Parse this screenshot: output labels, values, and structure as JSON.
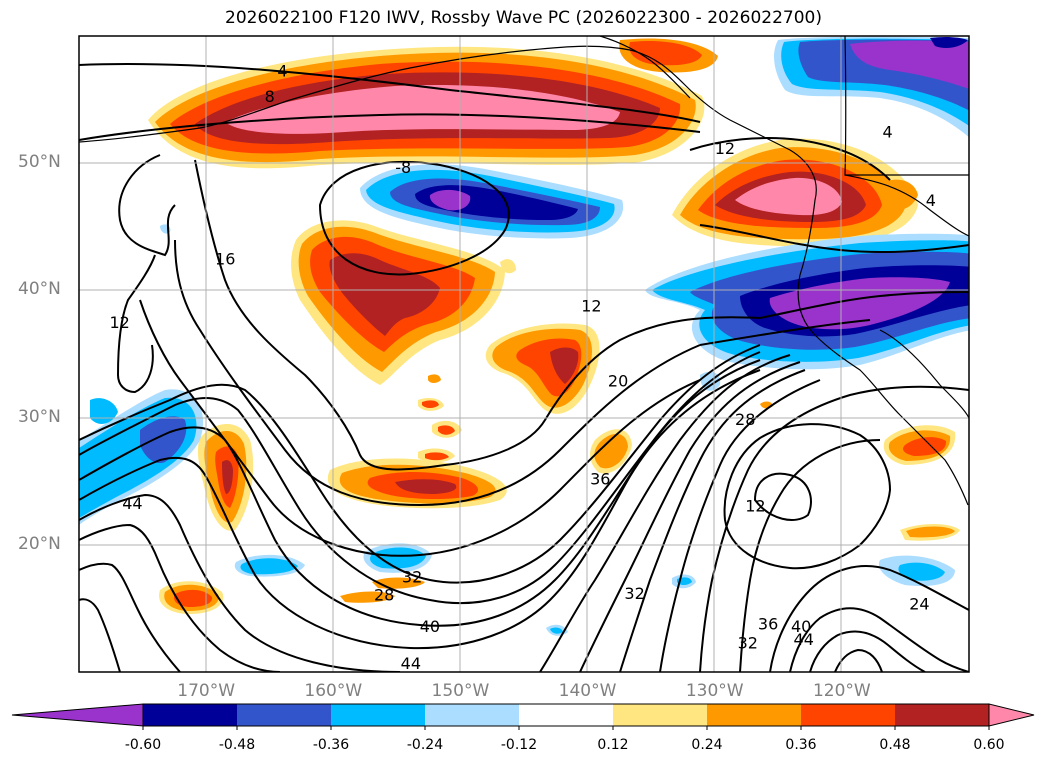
{
  "title": "2026022100 F120 IWV, Rossby Wave PC (2026022300 - 2026022700)",
  "lat_axis": {
    "labels": [
      {
        "text": "50°N",
        "value": 50
      },
      {
        "text": "40°N",
        "value": 40
      },
      {
        "text": "30°N",
        "value": 30
      },
      {
        "text": "20°N",
        "value": 20
      }
    ],
    "range": [
      10,
      60
    ]
  },
  "lon_axis": {
    "labels": [
      {
        "text": "170°W",
        "value": -170
      },
      {
        "text": "160°W",
        "value": -160
      },
      {
        "text": "150°W",
        "value": -150
      },
      {
        "text": "140°W",
        "value": -140
      },
      {
        "text": "130°W",
        "value": -130
      },
      {
        "text": "120°W",
        "value": -120
      }
    ],
    "range": [
      -180,
      -110
    ]
  },
  "colorbar": {
    "levels": [
      "-0.60",
      "-0.48",
      "-0.36",
      "-0.24",
      "-0.12",
      "0.12",
      "0.24",
      "0.36",
      "0.48",
      "0.60"
    ],
    "colors": [
      "#9933cc",
      "#000099",
      "#3355cc",
      "#00bbff",
      "#aaddff",
      "#ffffff",
      "#ffe680",
      "#ff9900",
      "#ff4400",
      "#b22222",
      "#ff88aa"
    ]
  },
  "fill_colors": {
    "pink": "#ff88aa",
    "darkred": "#b22222",
    "redorange": "#ff4400",
    "orange": "#ff9900",
    "yellow": "#ffe680",
    "lightblue": "#aaddff",
    "cyan": "#00bbff",
    "blue": "#3355cc",
    "navy": "#000099",
    "purple": "#9933cc"
  },
  "contour_labels": [
    {
      "text": "4",
      "lon": -164,
      "lat": 57.3
    },
    {
      "text": "8",
      "lon": -165,
      "lat": 55.3
    },
    {
      "text": "-8",
      "lon": -154.5,
      "lat": 49.7
    },
    {
      "text": "16",
      "lon": -168.5,
      "lat": 42.5
    },
    {
      "text": "12",
      "lon": -176.8,
      "lat": 37.5
    },
    {
      "text": "12",
      "lon": -139.7,
      "lat": 38.8
    },
    {
      "text": "20",
      "lon": -137.6,
      "lat": 32.9
    },
    {
      "text": "28",
      "lon": -127.6,
      "lat": 29.9
    },
    {
      "text": "36",
      "lon": -139,
      "lat": 25.2
    },
    {
      "text": "12",
      "lon": -126.8,
      "lat": 23.1
    },
    {
      "text": "44",
      "lon": -175.8,
      "lat": 23.3
    },
    {
      "text": "32",
      "lon": -153.8,
      "lat": 17.5
    },
    {
      "text": "28",
      "lon": -156,
      "lat": 16.1
    },
    {
      "text": "32",
      "lon": -136.3,
      "lat": 16.2
    },
    {
      "text": "40",
      "lon": -152.4,
      "lat": 13.6
    },
    {
      "text": "44",
      "lon": -153.9,
      "lat": 10.7
    },
    {
      "text": "36",
      "lon": -125.8,
      "lat": 13.8
    },
    {
      "text": "32",
      "lon": -127.4,
      "lat": 12.3
    },
    {
      "text": "40",
      "lon": -123.2,
      "lat": 13.6
    },
    {
      "text": "44",
      "lon": -123,
      "lat": 12.6
    },
    {
      "text": "24",
      "lon": -113.9,
      "lat": 15.4
    },
    {
      "text": "12",
      "lon": -129.2,
      "lat": 51.2
    },
    {
      "text": "4",
      "lon": -113,
      "lat": 47.1
    },
    {
      "text": "4",
      "lon": -116.4,
      "lat": 52.5
    }
  ]
}
